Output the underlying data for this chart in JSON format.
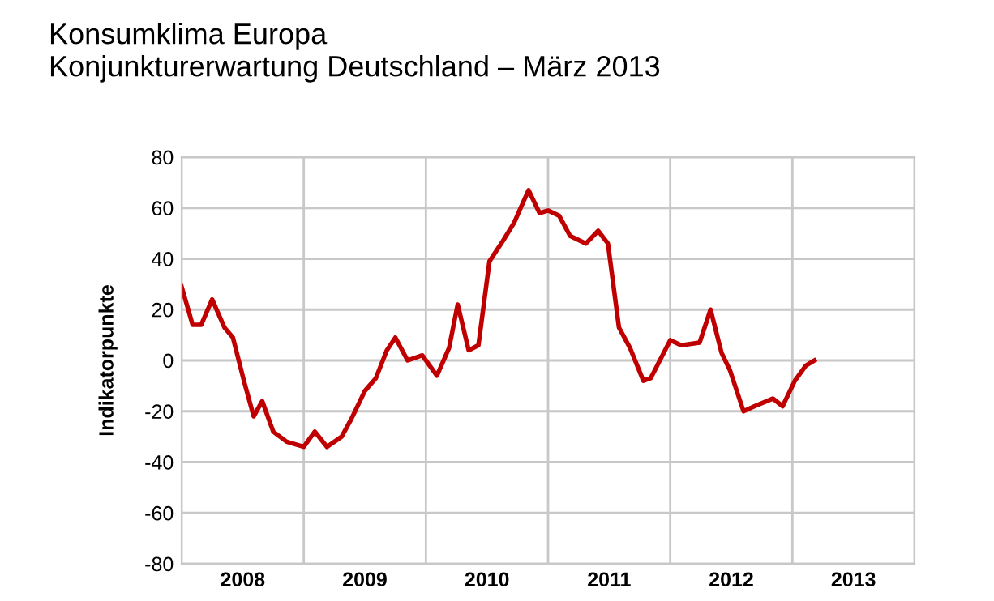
{
  "chart_data": {
    "type": "line",
    "title": "Konsumklima Europa",
    "subtitle": "Konjunkturerwartung Deutschland – März 2013",
    "ylabel": "Indikatorpunkte",
    "x": [
      2008.0,
      2008.09,
      2008.16,
      2008.25,
      2008.35,
      2008.42,
      2008.51,
      2008.59,
      2008.66,
      2008.75,
      2008.86,
      2009.0,
      2009.09,
      2009.19,
      2009.31,
      2009.39,
      2009.5,
      2009.59,
      2009.68,
      2009.75,
      2009.85,
      2009.97,
      2010.09,
      2010.19,
      2010.26,
      2010.35,
      2010.43,
      2010.52,
      2010.63,
      2010.72,
      2010.84,
      2010.93,
      2011.0,
      2011.09,
      2011.18,
      2011.31,
      2011.41,
      2011.49,
      2011.58,
      2011.67,
      2011.78,
      2011.84,
      2012.0,
      2012.09,
      2012.24,
      2012.33,
      2012.42,
      2012.49,
      2012.6,
      2012.69,
      2012.84,
      2012.92,
      2013.02,
      2013.11,
      2013.18
    ],
    "series": [
      {
        "color": "#c00000",
        "values": [
          29,
          14,
          14,
          24,
          13,
          9,
          -8,
          -22,
          -16,
          -28,
          -32,
          -34,
          -28,
          -34,
          -30,
          -23,
          -12,
          -7,
          4,
          9,
          0,
          2,
          -6,
          5,
          22,
          4,
          6,
          39,
          47,
          54,
          67,
          58,
          59,
          57,
          49,
          46,
          51,
          46,
          13,
          5,
          -8,
          -7,
          8,
          6,
          7,
          20,
          3,
          -4,
          -20,
          -18,
          -15,
          -18,
          -8,
          -2,
          0
        ]
      }
    ],
    "xlim": [
      2008,
      2014
    ],
    "xticks": [
      {
        "value": 2008,
        "label": null
      },
      {
        "value": 2008.5,
        "label": "2008"
      },
      {
        "value": 2009,
        "label": null
      },
      {
        "value": 2009.5,
        "label": "2009"
      },
      {
        "value": 2010,
        "label": null
      },
      {
        "value": 2010.5,
        "label": "2010"
      },
      {
        "value": 2011,
        "label": null
      },
      {
        "value": 2011.5,
        "label": "2011"
      },
      {
        "value": 2012,
        "label": null
      },
      {
        "value": 2012.5,
        "label": "2012"
      },
      {
        "value": 2013,
        "label": null
      },
      {
        "value": 2013.5,
        "label": "2013"
      },
      {
        "value": 2014,
        "label": null
      }
    ],
    "ylim": [
      -80,
      80
    ],
    "yticks": [
      -80,
      -60,
      -40,
      -20,
      0,
      20,
      40,
      60,
      80
    ],
    "grid": true,
    "legend": false,
    "marker": "none",
    "line_style": "solid"
  }
}
